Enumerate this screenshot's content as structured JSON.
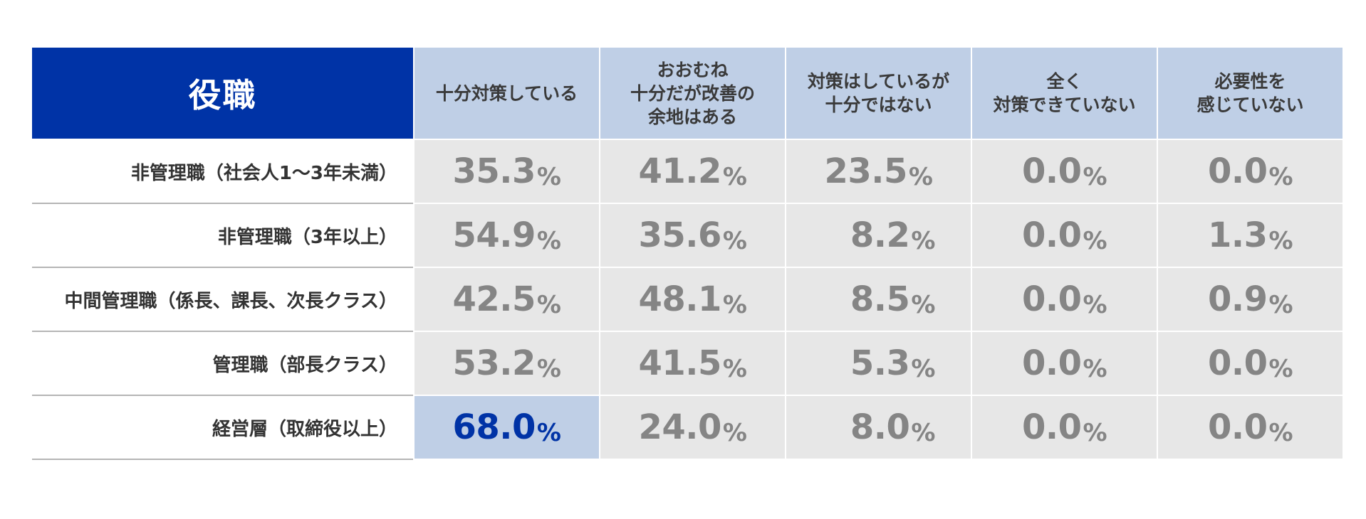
{
  "chart_data": {
    "type": "table",
    "corner_label": "役職",
    "columns": [
      "十分対策している",
      "おおむね\n十分だが改善の\n余地はある",
      "対策はしているが\n十分ではない",
      "全く\n対策できていない",
      "必要性を\n感じていない"
    ],
    "rows": [
      {
        "label": "非管理職（社会人1〜3年未満）",
        "values": [
          "35.3",
          "41.2",
          "23.5",
          "0.0",
          "0.0"
        ]
      },
      {
        "label": "非管理職（3年以上）",
        "values": [
          "54.9",
          "35.6",
          "8.2",
          "0.0",
          "1.3"
        ]
      },
      {
        "label": "中間管理職（係長、課長、次長クラス）",
        "values": [
          "42.5",
          "48.1",
          "8.5",
          "0.0",
          "0.9"
        ]
      },
      {
        "label": "管理職（部長クラス）",
        "values": [
          "53.2",
          "41.5",
          "5.3",
          "0.0",
          "0.0"
        ]
      },
      {
        "label": "経営層（取締役以上）",
        "values": [
          "68.0",
          "24.0",
          "8.0",
          "0.0",
          "0.0"
        ]
      }
    ],
    "value_suffix": "%",
    "highlight": {
      "row": 4,
      "col": 0
    },
    "colors": {
      "header_dark": "#0033a6",
      "header_light": "#bfcfe6",
      "cell_bg": "#e7e7e7",
      "value_text": "#858585",
      "highlight_text": "#0033a6"
    }
  }
}
